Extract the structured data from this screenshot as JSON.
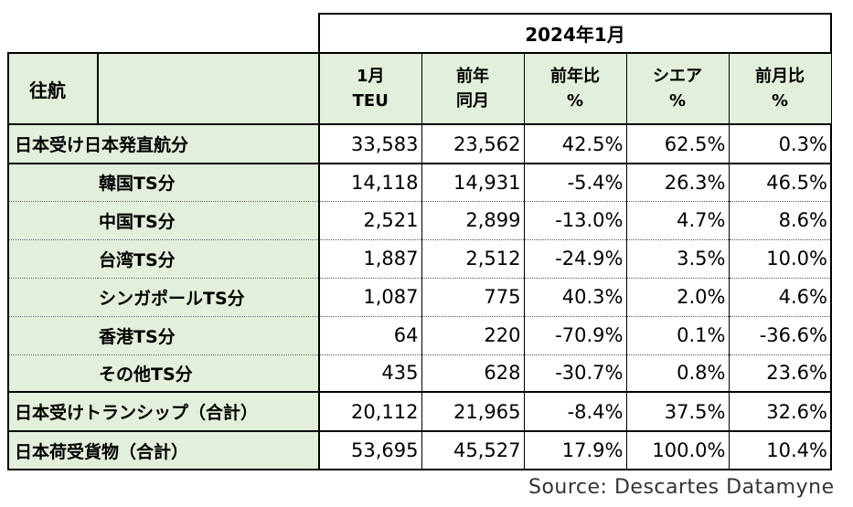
{
  "chart_data": {
    "type": "table",
    "period": "2024年1月",
    "row_header": "往航",
    "columns": [
      {
        "line1": "1月",
        "line2": "TEU"
      },
      {
        "line1": "前年",
        "line2": "同月"
      },
      {
        "line1": "前年比",
        "line2": "%"
      },
      {
        "line1": "シエア",
        "line2": "%"
      },
      {
        "line1": "前月比",
        "line2": "%"
      }
    ],
    "rows": [
      {
        "label": "日本受け日本発直航分",
        "level": "main",
        "values": [
          "33,583",
          "23,562",
          "42.5%",
          "62.5%",
          "0.3%"
        ]
      },
      {
        "label": "韓国TS分",
        "level": "sub",
        "values": [
          "14,118",
          "14,931",
          "-5.4%",
          "26.3%",
          "46.5%"
        ]
      },
      {
        "label": "中国TS分",
        "level": "sub",
        "values": [
          "2,521",
          "2,899",
          "-13.0%",
          "4.7%",
          "8.6%"
        ]
      },
      {
        "label": "台湾TS分",
        "level": "sub",
        "values": [
          "1,887",
          "2,512",
          "-24.9%",
          "3.5%",
          "10.0%"
        ]
      },
      {
        "label": "シンガポールTS分",
        "level": "sub",
        "values": [
          "1,087",
          "775",
          "40.3%",
          "2.0%",
          "4.6%"
        ]
      },
      {
        "label": "香港TS分",
        "level": "sub",
        "values": [
          "64",
          "220",
          "-70.9%",
          "0.1%",
          "-36.6%"
        ]
      },
      {
        "label": "その他TS分",
        "level": "sub",
        "values": [
          "435",
          "628",
          "-30.7%",
          "0.8%",
          "23.6%"
        ]
      },
      {
        "label": "日本受けトランシップ（合計）",
        "level": "main",
        "values": [
          "20,112",
          "21,965",
          "-8.4%",
          "37.5%",
          "32.6%"
        ]
      },
      {
        "label": "日本荷受貨物（合計）",
        "level": "main",
        "values": [
          "53,695",
          "45,527",
          "17.9%",
          "100.0%",
          "10.4%"
        ]
      }
    ],
    "source": "Source:  Descartes Datamyne",
    "colors": {
      "header_fill": "#e2efda",
      "cell_fill": "#ffffff",
      "border": "#000000"
    }
  }
}
